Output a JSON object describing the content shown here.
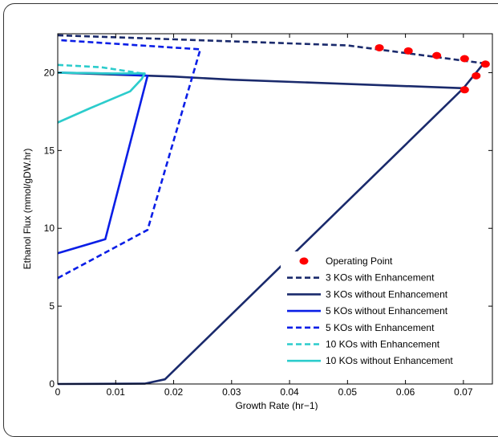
{
  "chart_data": {
    "type": "line",
    "title": "",
    "xlabel": "Growth Rate (hr−1)",
    "ylabel": "Ethanol Flux (mmol/gDW.hr)",
    "xlim": [
      0,
      0.075
    ],
    "ylim": [
      0,
      22.5
    ],
    "xticks": [
      0,
      0.01,
      0.02,
      0.03,
      0.04,
      0.05,
      0.06,
      0.07
    ],
    "xtick_labels": [
      "0",
      "0.01",
      "0.02",
      "0.03",
      "0.04",
      "0.05",
      "0.06",
      "0.07"
    ],
    "yticks": [
      0,
      5,
      10,
      15,
      20
    ],
    "ytick_labels": [
      "0",
      "5",
      "10",
      "15",
      "20"
    ],
    "grid": false,
    "legend_position": "bottom-right",
    "series": [
      {
        "name": "Operating Point",
        "kind": "scatter",
        "color": "#ff0000",
        "points": [
          [
            0.0555,
            21.6
          ],
          [
            0.0605,
            21.4
          ],
          [
            0.0654,
            21.1
          ],
          [
            0.0702,
            20.9
          ],
          [
            0.0738,
            20.55
          ],
          [
            0.0722,
            19.8
          ],
          [
            0.0702,
            18.9
          ]
        ]
      },
      {
        "name": "3 KOs with Enhancement",
        "kind": "line",
        "color": "#1a2a6c",
        "dash": "dashed",
        "points": [
          [
            0,
            22.4
          ],
          [
            0.05,
            21.75
          ],
          [
            0.0735,
            20.6
          ]
        ]
      },
      {
        "name": "3 KOs without Enhancement",
        "kind": "line",
        "color": "#1a2a6c",
        "dash": "solid",
        "points": [
          [
            0,
            20.0
          ],
          [
            0.02,
            19.75
          ],
          [
            0.03,
            19.55
          ],
          [
            0.07,
            19.0
          ],
          [
            0.0735,
            20.6
          ],
          [
            0.07,
            19.0
          ],
          [
            0.0185,
            0.3
          ],
          [
            0.015,
            0.02
          ],
          [
            0,
            0
          ]
        ]
      },
      {
        "name": "5 KOs without Enhancement",
        "kind": "line",
        "color": "#0a1ee6",
        "dash": "solid",
        "points": [
          [
            0,
            8.4
          ],
          [
            0.0082,
            9.3
          ],
          [
            0.0155,
            19.8
          ],
          [
            0.0085,
            19.95
          ],
          [
            0,
            20.0
          ]
        ]
      },
      {
        "name": "5 KOs with Enhancement",
        "kind": "line",
        "color": "#0a1ee6",
        "dash": "dashed",
        "points": [
          [
            0,
            6.8
          ],
          [
            0.0155,
            9.9
          ],
          [
            0.0246,
            21.5
          ],
          [
            0,
            22.1
          ]
        ]
      },
      {
        "name": "10 KOs with Enhancement",
        "kind": "line",
        "color": "#2ccccc",
        "dash": "dashed",
        "points": [
          [
            0,
            20.5
          ],
          [
            0.0075,
            20.35
          ],
          [
            0.0145,
            19.95
          ]
        ]
      },
      {
        "name": "10 KOs without Enhancement",
        "kind": "line",
        "color": "#2ccccc",
        "dash": "solid",
        "points": [
          [
            0,
            16.8
          ],
          [
            0.0055,
            17.7
          ],
          [
            0.0125,
            18.8
          ],
          [
            0.0145,
            19.6
          ],
          [
            0.015,
            19.95
          ],
          [
            0.0085,
            19.95
          ],
          [
            0,
            20.0
          ]
        ]
      }
    ]
  }
}
